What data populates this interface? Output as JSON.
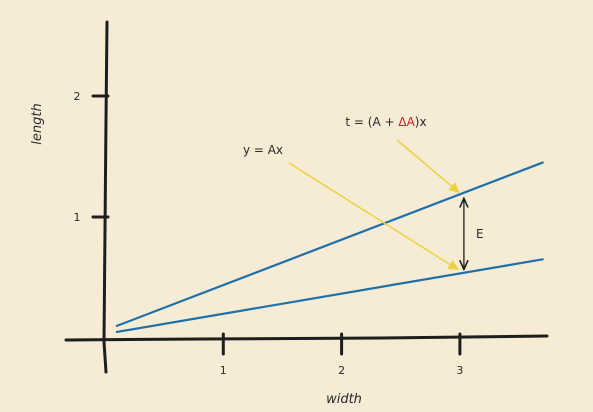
{
  "chart_data": {
    "type": "line",
    "xlabel": "width",
    "ylabel": "length",
    "xlim": [
      -0.1,
      3.7
    ],
    "ylim": [
      -0.1,
      2.55
    ],
    "x_ticks": [
      {
        "value": 1,
        "label": "1"
      },
      {
        "value": 2,
        "label": "2"
      },
      {
        "value": 3,
        "label": "3"
      }
    ],
    "y_ticks": [
      {
        "value": 1,
        "label": "1"
      },
      {
        "value": 2,
        "label": "2"
      }
    ],
    "series": [
      {
        "values": [
          {
            "x": 0.1,
            "y": 0.1
          },
          {
            "x": 3.7,
            "y": 1.45
          }
        ]
      },
      {
        "values": [
          {
            "x": 0.1,
            "y": 0.05
          },
          {
            "x": 3.7,
            "y": 0.65
          }
        ]
      }
    ],
    "annotations": {
      "lower_line_eq": "y = Ax",
      "upper_line_eq_prefix": "t = (A + ",
      "upper_line_eq_delta": "ΔA",
      "upper_line_eq_suffix": ")x",
      "error_label": "E",
      "error_x": 3
    },
    "grid": false,
    "colors": {
      "background": "#f6ecd5",
      "line": "#1f6fa8",
      "arrow": "#ecd23c",
      "axis": "#1e1e1e",
      "delta": "#d0202a"
    }
  }
}
